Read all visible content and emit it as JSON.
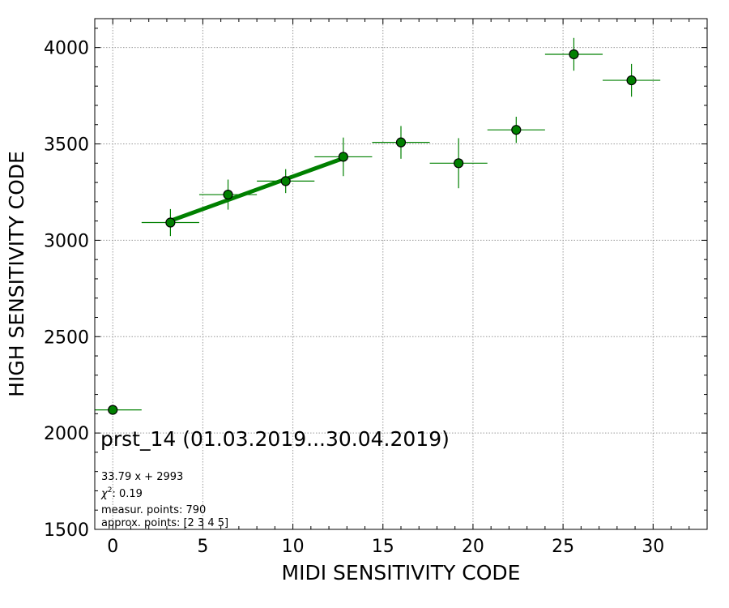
{
  "chart_data": {
    "type": "scatter",
    "xlabel": "MIDI SENSITIVITY CODE",
    "ylabel": "HIGH SENSITIVITY CODE",
    "xlim": [
      -1,
      33
    ],
    "ylim": [
      1500,
      4150
    ],
    "xticks": [
      0,
      5,
      10,
      15,
      20,
      25,
      30
    ],
    "yticks": [
      1500,
      2000,
      2500,
      3000,
      3500,
      4000
    ],
    "grid": true,
    "grid_style": "dotted",
    "colors": {
      "marker": "#008000",
      "marker_edge": "#000000",
      "errorbar": "#008000",
      "fit": "#008000",
      "grid": "#999999"
    },
    "points": [
      {
        "x": 0,
        "y": 2120,
        "xerr": 1.6,
        "yerr": 0
      },
      {
        "x": 3.2,
        "y": 3092,
        "xerr": 1.6,
        "yerr": 70
      },
      {
        "x": 6.4,
        "y": 3237,
        "xerr": 1.6,
        "yerr": 78
      },
      {
        "x": 9.6,
        "y": 3307,
        "xerr": 1.6,
        "yerr": 62
      },
      {
        "x": 12.8,
        "y": 3433,
        "xerr": 1.6,
        "yerr": 100
      },
      {
        "x": 16.0,
        "y": 3508,
        "xerr": 1.6,
        "yerr": 85
      },
      {
        "x": 19.2,
        "y": 3400,
        "xerr": 1.6,
        "yerr": 130
      },
      {
        "x": 22.4,
        "y": 3573,
        "xerr": 1.6,
        "yerr": 68
      },
      {
        "x": 25.6,
        "y": 3965,
        "xerr": 1.6,
        "yerr": 85
      },
      {
        "x": 28.8,
        "y": 3830,
        "xerr": 1.6,
        "yerr": 85
      }
    ],
    "fit": {
      "slope": 33.79,
      "intercept": 2993,
      "x_range": [
        3.2,
        12.8
      ]
    },
    "annotations": {
      "title": "prst_14 (01.03.2019...30.04.2019)",
      "equation": "33.79 x + 2993",
      "chi2_symbol": "χ",
      "chi2_exp": "2",
      "chi2_value": ": 0.19",
      "measur_points": "measur. points: 790",
      "approx_points": "approx. points: [2 3 4 5]"
    }
  }
}
